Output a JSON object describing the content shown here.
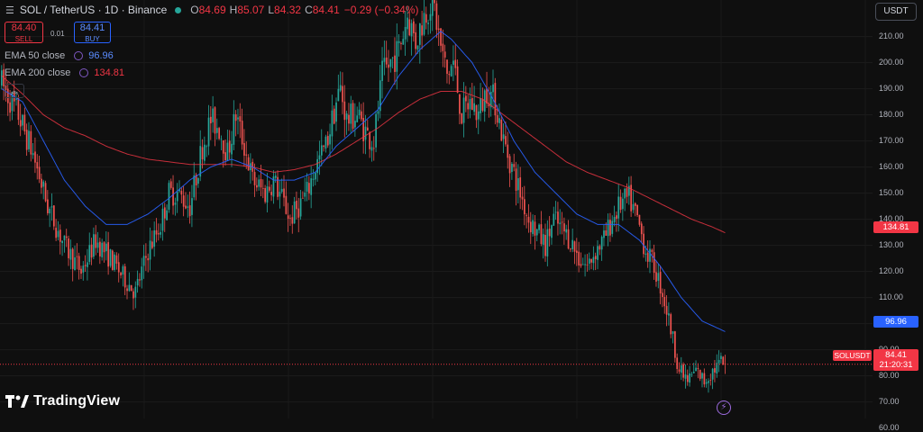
{
  "header": {
    "menu_icon": "hamburger-icon",
    "symbol": "SOL / TetherUS · 1D · Binance",
    "status_color": "#26a69a",
    "o_key": "O",
    "o_val": "84.69",
    "h_key": "H",
    "h_val": "85.07",
    "l_key": "L",
    "l_val": "84.32",
    "c_key": "C",
    "c_val": "84.41",
    "change": "−0.29 (−0.34%)"
  },
  "trade": {
    "sell_price": "84.40",
    "sell_label": "SELL",
    "spread": "0.01",
    "buy_price": "84.41",
    "buy_label": "BUY"
  },
  "indicators": [
    {
      "name": "EMA 50 close",
      "value": "96.96",
      "color": "#2962ff"
    },
    {
      "name": "EMA 200 close",
      "value": "134.81",
      "color": "#f23645"
    }
  ],
  "currency": "USDT",
  "logo": "TradingView",
  "price_labels": {
    "ema200": "134.81",
    "ema50": "96.96",
    "symbol": "SOLUSDT",
    "last": "84.41",
    "countdown": "21:20:31"
  },
  "chart_data": {
    "type": "candlestick",
    "title": "SOL / TetherUS · 1D · Binance",
    "ylim": [
      60,
      220
    ],
    "y_ticks": [
      "210.00",
      "200.00",
      "190.00",
      "180.00",
      "170.00",
      "160.00",
      "150.00",
      "140.00",
      "130.00",
      "120.00",
      "110.00",
      "100.00",
      "90.00",
      "80.00",
      "70.00",
      "60.00"
    ],
    "up_color": "#26a69a",
    "down_color": "#ef5350",
    "price_anchors": [
      [
        0,
        192
      ],
      [
        8,
        180
      ],
      [
        15,
        165
      ],
      [
        22,
        145
      ],
      [
        30,
        130
      ],
      [
        38,
        120
      ],
      [
        45,
        132
      ],
      [
        52,
        125
      ],
      [
        58,
        118
      ],
      [
        64,
        112
      ],
      [
        70,
        128
      ],
      [
        76,
        138
      ],
      [
        80,
        150
      ],
      [
        84,
        150
      ],
      [
        90,
        145
      ],
      [
        96,
        168
      ],
      [
        100,
        178
      ],
      [
        104,
        175
      ],
      [
        108,
        165
      ],
      [
        112,
        180
      ],
      [
        116,
        168
      ],
      [
        120,
        155
      ],
      [
        126,
        150
      ],
      [
        130,
        155
      ],
      [
        134,
        148
      ],
      [
        138,
        140
      ],
      [
        142,
        145
      ],
      [
        146,
        150
      ],
      [
        150,
        160
      ],
      [
        155,
        168
      ],
      [
        158,
        178
      ],
      [
        160,
        185
      ],
      [
        162,
        190
      ],
      [
        165,
        178
      ],
      [
        170,
        180
      ],
      [
        175,
        172
      ],
      [
        178,
        170
      ],
      [
        182,
        195
      ],
      [
        186,
        200
      ],
      [
        190,
        205
      ],
      [
        194,
        218
      ],
      [
        198,
        208
      ],
      [
        202,
        218
      ],
      [
        206,
        225
      ],
      [
        210,
        206
      ],
      [
        213,
        195
      ],
      [
        216,
        200
      ],
      [
        220,
        180
      ],
      [
        224,
        185
      ],
      [
        228,
        180
      ],
      [
        232,
        190
      ],
      [
        236,
        185
      ],
      [
        240,
        170
      ],
      [
        244,
        160
      ],
      [
        248,
        150
      ],
      [
        252,
        140
      ],
      [
        256,
        135
      ],
      [
        260,
        130
      ],
      [
        264,
        140
      ],
      [
        268,
        136
      ],
      [
        272,
        132
      ],
      [
        276,
        125
      ],
      [
        280,
        122
      ],
      [
        284,
        128
      ],
      [
        288,
        132
      ],
      [
        292,
        140
      ],
      [
        296,
        146
      ],
      [
        300,
        148
      ],
      [
        304,
        140
      ],
      [
        308,
        128
      ],
      [
        312,
        122
      ],
      [
        316,
        112
      ],
      [
        320,
        98
      ],
      [
        324,
        82
      ],
      [
        328,
        78
      ],
      [
        332,
        82
      ],
      [
        336,
        78
      ],
      [
        340,
        82
      ],
      [
        344,
        85
      ],
      [
        346,
        84.41
      ]
    ],
    "ema50_anchors": [
      [
        0,
        190
      ],
      [
        10,
        185
      ],
      [
        20,
        170
      ],
      [
        30,
        155
      ],
      [
        40,
        145
      ],
      [
        50,
        138
      ],
      [
        60,
        138
      ],
      [
        70,
        142
      ],
      [
        80,
        148
      ],
      [
        90,
        155
      ],
      [
        100,
        160
      ],
      [
        110,
        163
      ],
      [
        120,
        160
      ],
      [
        130,
        155
      ],
      [
        140,
        155
      ],
      [
        150,
        158
      ],
      [
        160,
        168
      ],
      [
        170,
        175
      ],
      [
        180,
        182
      ],
      [
        190,
        195
      ],
      [
        200,
        205
      ],
      [
        210,
        212
      ],
      [
        215,
        209
      ],
      [
        225,
        200
      ],
      [
        235,
        186
      ],
      [
        245,
        170
      ],
      [
        255,
        158
      ],
      [
        265,
        150
      ],
      [
        275,
        142
      ],
      [
        285,
        138
      ],
      [
        295,
        138
      ],
      [
        305,
        132
      ],
      [
        315,
        122
      ],
      [
        325,
        110
      ],
      [
        335,
        101
      ],
      [
        346,
        96.96
      ]
    ],
    "ema200_anchors": [
      [
        0,
        195
      ],
      [
        10,
        188
      ],
      [
        20,
        180
      ],
      [
        30,
        175
      ],
      [
        40,
        172
      ],
      [
        50,
        168
      ],
      [
        60,
        165
      ],
      [
        70,
        163
      ],
      [
        80,
        162
      ],
      [
        90,
        161
      ],
      [
        100,
        161
      ],
      [
        110,
        161
      ],
      [
        120,
        160
      ],
      [
        130,
        158
      ],
      [
        140,
        159
      ],
      [
        150,
        161
      ],
      [
        160,
        165
      ],
      [
        170,
        170
      ],
      [
        180,
        175
      ],
      [
        190,
        181
      ],
      [
        200,
        186
      ],
      [
        210,
        189
      ],
      [
        220,
        189
      ],
      [
        230,
        186
      ],
      [
        240,
        180
      ],
      [
        250,
        174
      ],
      [
        260,
        168
      ],
      [
        270,
        162
      ],
      [
        280,
        158
      ],
      [
        290,
        155
      ],
      [
        300,
        152
      ],
      [
        310,
        148
      ],
      [
        320,
        144
      ],
      [
        330,
        140
      ],
      [
        340,
        137
      ],
      [
        346,
        134.81
      ]
    ],
    "candle_count": 347,
    "last_price": 84.41
  }
}
